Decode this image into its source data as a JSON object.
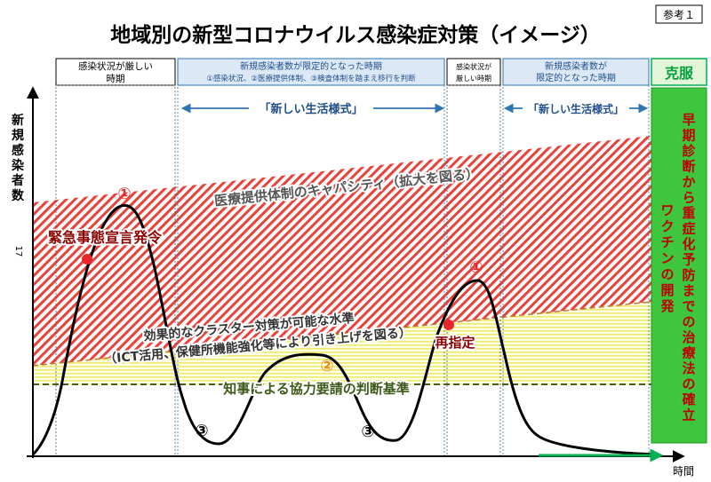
{
  "badge": "参考１",
  "title": "地域別の新型コロナウイルス感染症対策（イメージ）",
  "page_number": "17",
  "y_axis_label": [
    "新",
    "規",
    "感",
    "染",
    "者",
    "数"
  ],
  "x_axis_label": "時間",
  "phases": [
    {
      "lines": [
        "感染状況が厳しい",
        "時期"
      ]
    },
    {
      "lines": [
        "新規感染者数が限定的となった時期",
        "①感染状況、②医療提供体制、③検査体制を踏まえ移行を判断"
      ]
    },
    {
      "lines": [
        "感染状況が",
        "厳しい時期"
      ]
    },
    {
      "lines": [
        "新規感染者数が",
        "限定的となった時期"
      ]
    }
  ],
  "overcome": "克服",
  "new_lifestyle": "「新しい生活様式」",
  "capacity_label": "医療提供体制のキャパシティ（拡大を図る）",
  "cluster_label_line1": "効果的なクラスター対策が可能な水準",
  "cluster_label_line2": "（ICT活用、保健所機能強化等により引き上げを図る）",
  "governor_label": "知事による協力要請の判断基準",
  "emergency_label": "緊急事態宣言発令",
  "redesignation_label": "再指定",
  "markers": {
    "peak": "①",
    "moderate": "②",
    "low": "③"
  },
  "side_text_col1": [
    "早",
    "期",
    "診",
    "断",
    "か",
    "ら",
    "重",
    "症",
    "化",
    "予",
    "防",
    "ま",
    "で",
    "の",
    "治",
    "療",
    "法",
    "の",
    "確",
    "立"
  ],
  "side_text_col2": [
    "ワ",
    "ク",
    "チ",
    "ン",
    "の",
    "開",
    "発"
  ],
  "colors": {
    "title": "#000000",
    "phase_blue": "#2e75b6",
    "phase_green": "#00b050",
    "red_hatch": "#e8423b",
    "yellow_hatch": "#f5f07a",
    "curve": "#000000",
    "dot": "#e8262b"
  }
}
